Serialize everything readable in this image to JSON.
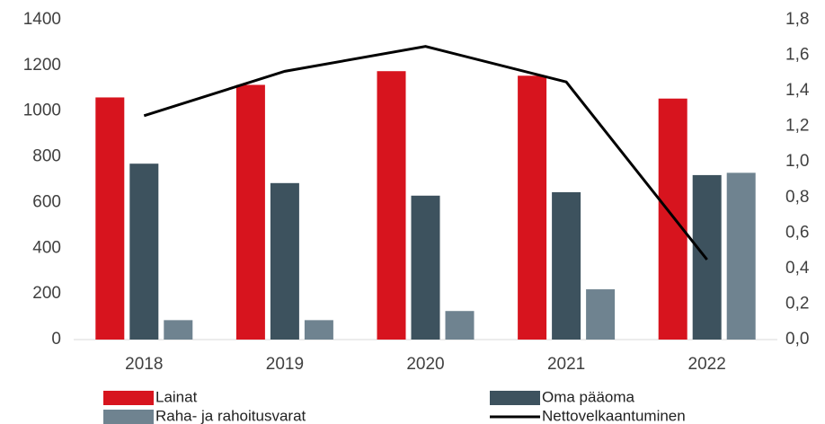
{
  "chart_data": {
    "type": "bar",
    "categories": [
      "2018",
      "2019",
      "2020",
      "2021",
      "2022"
    ],
    "series": [
      {
        "name": "Lainat",
        "color": "#d7141e",
        "values": [
          1060,
          1115,
          1175,
          1155,
          1055
        ]
      },
      {
        "name": "Oma pääoma",
        "color": "#3d525e",
        "values": [
          770,
          685,
          630,
          645,
          720
        ]
      },
      {
        "name": "Raha- ja rahoitusvarat",
        "color": "#6f8390",
        "values": [
          85,
          85,
          125,
          220,
          730
        ]
      },
      {
        "name": "Nettovelkaantuminen",
        "color": "#000000",
        "type": "line",
        "axis": "y2",
        "values": [
          1.26,
          1.51,
          1.65,
          1.45,
          0.45
        ]
      }
    ],
    "ylim": [
      0,
      1400
    ],
    "yticks": [
      0,
      200,
      400,
      600,
      800,
      1000,
      1200,
      1400
    ],
    "y2lim": [
      0,
      1.8
    ],
    "y2ticks": [
      {
        "value": 0,
        "label": "0,0"
      },
      {
        "value": 0.2,
        "label": "0,2"
      },
      {
        "value": 0.4,
        "label": "0,4"
      },
      {
        "value": 0.6,
        "label": "0,6"
      },
      {
        "value": 0.8,
        "label": "0,8"
      },
      {
        "value": 1.0,
        "label": "1,0"
      },
      {
        "value": 1.2,
        "label": "1,2"
      },
      {
        "value": 1.4,
        "label": "1,4"
      },
      {
        "value": 1.6,
        "label": "1,6"
      },
      {
        "value": 1.8,
        "label": "1,8"
      }
    ],
    "grid": false
  }
}
